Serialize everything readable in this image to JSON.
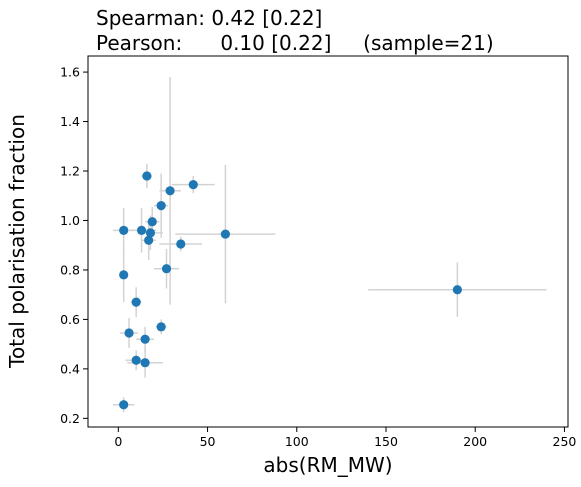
{
  "chart_data": {
    "type": "scatter",
    "title_lines": [
      "Spearman: 0.42 [0.22]",
      "Pearson:      0.10 [0.22]     (sample=21)"
    ],
    "xlabel": "abs(RM_MW)",
    "ylabel": "Total polarisation fraction",
    "xlim": [
      -17,
      252
    ],
    "ylim": [
      0.165,
      1.665
    ],
    "xticks": [
      0,
      50,
      100,
      150,
      200,
      250
    ],
    "yticks": [
      0.2,
      0.4,
      0.6,
      0.8,
      1.0,
      1.2,
      1.4,
      1.6
    ],
    "xtick_labels": [
      "0",
      "50",
      "100",
      "150",
      "200",
      "250"
    ],
    "ytick_labels": [
      "0.2",
      "0.4",
      "0.6",
      "0.8",
      "1.0",
      "1.2",
      "1.4",
      "1.6"
    ],
    "grid": false,
    "colors": {
      "point": "#1f77b4",
      "errorbar": "#d3d3d3"
    },
    "points": [
      {
        "x": 3,
        "y": 0.255,
        "xerr": 6,
        "yerr": 0.03
      },
      {
        "x": 3,
        "y": 0.96,
        "xerr": 6,
        "yerr": 0.09
      },
      {
        "x": 3,
        "y": 0.78,
        "xerr": 2,
        "yerr": 0.11
      },
      {
        "x": 6,
        "y": 0.545,
        "xerr": 5,
        "yerr": 0.06
      },
      {
        "x": 10,
        "y": 0.435,
        "xerr": 6,
        "yerr": 0.04
      },
      {
        "x": 10,
        "y": 0.67,
        "xerr": 3,
        "yerr": 0.06
      },
      {
        "x": 13,
        "y": 0.96,
        "xerr": 8,
        "yerr": 0.09
      },
      {
        "x": 15,
        "y": 0.52,
        "xerr": 5,
        "yerr": 0.05
      },
      {
        "x": 15,
        "y": 0.425,
        "xerr": 10,
        "yerr": 0.06
      },
      {
        "x": 16,
        "y": 1.18,
        "xerr": 3,
        "yerr": 0.05
      },
      {
        "x": 17,
        "y": 0.92,
        "xerr": 4,
        "yerr": 0.08
      },
      {
        "x": 18,
        "y": 0.95,
        "xerr": 7,
        "yerr": 0.07
      },
      {
        "x": 19,
        "y": 0.995,
        "xerr": 4,
        "yerr": 0.06
      },
      {
        "x": 24,
        "y": 0.57,
        "xerr": 3,
        "yerr": 0.03
      },
      {
        "x": 24,
        "y": 1.06,
        "xerr": 4,
        "yerr": 0.13
      },
      {
        "x": 27,
        "y": 0.805,
        "xerr": 7,
        "yerr": 0.08
      },
      {
        "x": 29,
        "y": 1.12,
        "xerr": 6,
        "yerr": 0.46
      },
      {
        "x": 35,
        "y": 0.905,
        "xerr": 12,
        "yerr": 0.03
      },
      {
        "x": 42,
        "y": 1.145,
        "xerr": 12,
        "yerr": 0.035
      },
      {
        "x": 60,
        "y": 0.945,
        "xerr": 28,
        "yerr": 0.28
      },
      {
        "x": 190,
        "y": 0.72,
        "xerr": 50,
        "yerr": 0.11
      }
    ]
  }
}
